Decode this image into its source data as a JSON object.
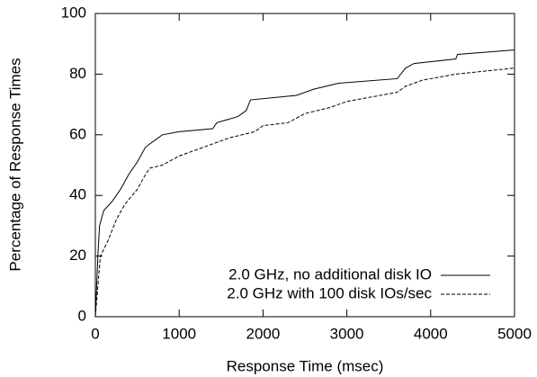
{
  "chart_data": {
    "type": "line",
    "x_label": "Response Time (msec)",
    "y_label": "Percentage of Response Times",
    "xlim": [
      0,
      5000
    ],
    "xticks": [
      0,
      1000,
      2000,
      3000,
      4000,
      5000
    ],
    "ylim": [
      0,
      100
    ],
    "yticks": [
      0,
      20,
      40,
      60,
      80,
      100
    ],
    "legend": "bottom-right",
    "series": [
      {
        "name": "2.0 GHz, no additional disk IO",
        "color": "#000000",
        "dash": "solid",
        "x": [
          0,
          30,
          50,
          100,
          200,
          300,
          400,
          500,
          600,
          700,
          800,
          1000,
          1400,
          1450,
          1700,
          1800,
          1850,
          2400,
          2600,
          2900,
          3600,
          3700,
          3800,
          4300,
          4320,
          5000
        ],
        "values": [
          0,
          20,
          30,
          35,
          38,
          42,
          47,
          51,
          56,
          58,
          60,
          61,
          62,
          64,
          66,
          68,
          71.5,
          73,
          75,
          77,
          78.5,
          82,
          83.5,
          85,
          86.5,
          88
        ]
      },
      {
        "name": "2.0 GHz with 100 disk IOs/sec",
        "color": "#000000",
        "dash": "dashed",
        "x": [
          0,
          30,
          60,
          150,
          250,
          350,
          500,
          600,
          650,
          800,
          1000,
          1400,
          1600,
          1900,
          2000,
          2300,
          2500,
          2800,
          3000,
          3600,
          3700,
          3900,
          4300,
          5000
        ],
        "values": [
          0,
          10,
          20,
          25,
          32,
          37,
          42,
          47,
          49,
          50,
          53,
          57,
          59,
          61,
          63,
          64,
          67,
          69,
          71,
          74,
          76,
          78,
          80,
          82
        ]
      }
    ]
  }
}
